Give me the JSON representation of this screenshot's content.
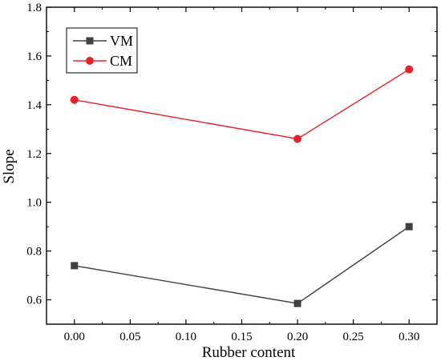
{
  "chart_data": {
    "type": "line",
    "x": [
      0.0,
      0.2,
      0.3
    ],
    "series": [
      {
        "name": "VM",
        "values": [
          0.74,
          0.585,
          0.9
        ],
        "color": "#404040",
        "marker": "square"
      },
      {
        "name": "CM",
        "values": [
          1.42,
          1.26,
          1.545
        ],
        "color": "#e8202a",
        "marker": "circle"
      }
    ],
    "xlabel": "Rubber content",
    "ylabel": "Slope",
    "xlim": [
      -0.025,
      0.325
    ],
    "ylim": [
      0.5,
      1.8
    ],
    "xticks": [
      "0.00",
      "0.05",
      "0.10",
      "0.15",
      "0.20",
      "0.25",
      "0.30"
    ],
    "yticks": [
      "0.6",
      "0.8",
      "1.0",
      "1.2",
      "1.4",
      "1.6",
      "1.8"
    ],
    "grid": false,
    "legend_position": "top-left"
  }
}
